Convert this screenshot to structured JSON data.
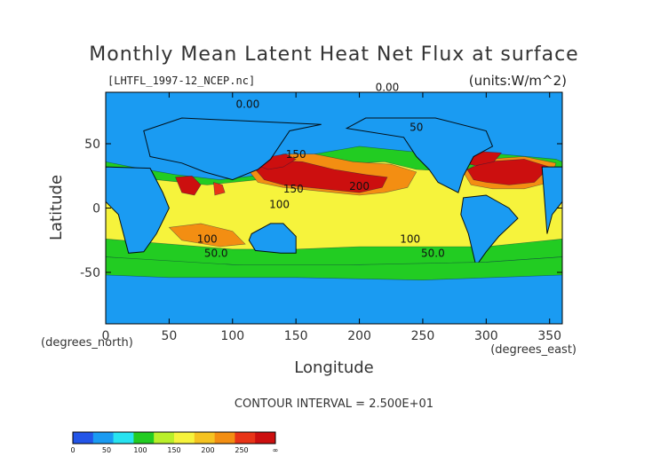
{
  "chart_data": {
    "type": "heatmap",
    "title": "Monthly Mean Latent Heat Net Flux at surface",
    "source_file": "[LHTFL_1997-12_NCEP.nc]",
    "units": "(units:W/m^2)",
    "xlabel": "Longitude",
    "ylabel": "Latitude",
    "x_unit_label": "(degrees_east)",
    "y_unit_label": "(degrees_north)",
    "xlim": [
      0,
      360
    ],
    "ylim": [
      -90,
      90
    ],
    "x_ticks": [
      0,
      50,
      100,
      150,
      200,
      250,
      300,
      350
    ],
    "y_ticks": [
      50,
      0,
      -50
    ],
    "contour_interval_text": "CONTOUR INTERVAL = 2.500E+01",
    "contour_labels": [
      {
        "text": "0.00",
        "lon": 222,
        "lat": 91
      },
      {
        "text": "0.00",
        "lon": 112,
        "lat": 78
      },
      {
        "text": "50",
        "lon": 245,
        "lat": 60
      },
      {
        "text": "150",
        "lon": 150,
        "lat": 39
      },
      {
        "text": "200",
        "lon": 200,
        "lat": 14
      },
      {
        "text": "150",
        "lon": 148,
        "lat": 12
      },
      {
        "text": "100",
        "lon": 137,
        "lat": 0
      },
      {
        "text": "100",
        "lon": 80,
        "lat": -27
      },
      {
        "text": "50.0",
        "lon": 87,
        "lat": -38
      },
      {
        "text": "100",
        "lon": 240,
        "lat": -27
      },
      {
        "text": "50.0",
        "lon": 258,
        "lat": -38
      }
    ],
    "colorbar": {
      "ticks": [
        "0",
        "50",
        "100",
        "150",
        "200",
        "250",
        "∞"
      ],
      "colors": [
        "#2355e8",
        "#1a9bf2",
        "#27e3f0",
        "#22cc22",
        "#b9ef2a",
        "#f6f33c",
        "#f5c321",
        "#f38e12",
        "#e83417",
        "#cc0f0f"
      ]
    },
    "regions": [
      {
        "name": "base",
        "value": 25,
        "poly": [
          [
            0,
            90
          ],
          [
            360,
            90
          ],
          [
            360,
            -90
          ],
          [
            0,
            -90
          ]
        ]
      },
      {
        "name": "tropics",
        "value": 75,
        "poly": [
          [
            0,
            36
          ],
          [
            20,
            32
          ],
          [
            55,
            26
          ],
          [
            90,
            22
          ],
          [
            125,
            26
          ],
          [
            165,
            42
          ],
          [
            200,
            48
          ],
          [
            240,
            44
          ],
          [
            300,
            43
          ],
          [
            355,
            38
          ],
          [
            360,
            36
          ],
          [
            360,
            -38
          ],
          [
            300,
            -42
          ],
          [
            250,
            -44
          ],
          [
            200,
            -44
          ],
          [
            150,
            -46
          ],
          [
            100,
            -44
          ],
          [
            50,
            -42
          ],
          [
            0,
            -38
          ]
        ]
      },
      {
        "name": "greenbelt",
        "value": 125,
        "poly": [
          [
            0,
            24
          ],
          [
            40,
            22
          ],
          [
            80,
            18
          ],
          [
            120,
            22
          ],
          [
            150,
            28
          ],
          [
            180,
            34
          ],
          [
            220,
            36
          ],
          [
            245,
            30
          ],
          [
            280,
            28
          ],
          [
            320,
            30
          ],
          [
            360,
            24
          ],
          [
            360,
            -24
          ],
          [
            300,
            -30
          ],
          [
            250,
            -30
          ],
          [
            200,
            -30
          ],
          [
            150,
            -32
          ],
          [
            100,
            -32
          ],
          [
            50,
            -28
          ],
          [
            0,
            -24
          ]
        ]
      },
      {
        "name": "npac-yellow",
        "value": 175,
        "poly": [
          [
            112,
            30
          ],
          [
            140,
            42
          ],
          [
            165,
            42
          ],
          [
            195,
            36
          ],
          [
            225,
            34
          ],
          [
            245,
            28
          ],
          [
            238,
            16
          ],
          [
            220,
            12
          ],
          [
            200,
            10
          ],
          [
            180,
            12
          ],
          [
            160,
            14
          ],
          [
            140,
            16
          ],
          [
            120,
            20
          ]
        ]
      },
      {
        "name": "npac-orange",
        "value": 225,
        "poly": [
          [
            118,
            30
          ],
          [
            135,
            37
          ],
          [
            155,
            36
          ],
          [
            180,
            30
          ],
          [
            205,
            26
          ],
          [
            222,
            24
          ],
          [
            218,
            16
          ],
          [
            200,
            12
          ],
          [
            180,
            14
          ],
          [
            160,
            16
          ],
          [
            140,
            18
          ],
          [
            125,
            22
          ]
        ]
      },
      {
        "name": "kuroshio",
        "value": 275,
        "poly": [
          [
            120,
            33
          ],
          [
            130,
            40
          ],
          [
            142,
            42
          ],
          [
            150,
            38
          ],
          [
            140,
            32
          ],
          [
            128,
            30
          ]
        ]
      },
      {
        "name": "natl-yellow",
        "value": 175,
        "poly": [
          [
            282,
            28
          ],
          [
            300,
            38
          ],
          [
            330,
            40
          ],
          [
            355,
            35
          ],
          [
            350,
            20
          ],
          [
            330,
            15
          ],
          [
            305,
            15
          ],
          [
            288,
            18
          ]
        ]
      },
      {
        "name": "natl-orange",
        "value": 225,
        "poly": [
          [
            285,
            30
          ],
          [
            300,
            36
          ],
          [
            330,
            38
          ],
          [
            350,
            32
          ],
          [
            338,
            20
          ],
          [
            318,
            18
          ],
          [
            300,
            20
          ],
          [
            290,
            22
          ]
        ]
      },
      {
        "name": "gulfstream",
        "value": 275,
        "poly": [
          [
            282,
            35
          ],
          [
            295,
            44
          ],
          [
            312,
            43
          ],
          [
            306,
            36
          ],
          [
            292,
            33
          ]
        ]
      },
      {
        "name": "arabian-sea",
        "value": 250,
        "poly": [
          [
            55,
            24
          ],
          [
            68,
            25
          ],
          [
            75,
            18
          ],
          [
            70,
            10
          ],
          [
            60,
            12
          ]
        ]
      },
      {
        "name": "bay-of-bengal",
        "value": 200,
        "poly": [
          [
            85,
            20
          ],
          [
            92,
            18
          ],
          [
            94,
            12
          ],
          [
            86,
            10
          ]
        ]
      },
      {
        "name": "south-indian",
        "value": 175,
        "poly": [
          [
            50,
            -15
          ],
          [
            75,
            -12
          ],
          [
            100,
            -18
          ],
          [
            110,
            -28
          ],
          [
            90,
            -30
          ],
          [
            60,
            -25
          ]
        ]
      },
      {
        "name": "australia-land",
        "value": 25,
        "poly": [
          [
            115,
            -20
          ],
          [
            130,
            -12
          ],
          [
            140,
            -12
          ],
          [
            150,
            -22
          ],
          [
            150,
            -35
          ],
          [
            138,
            -35
          ],
          [
            118,
            -33
          ],
          [
            113,
            -25
          ]
        ]
      },
      {
        "name": "sam-land",
        "value": 25,
        "poly": [
          [
            282,
            8
          ],
          [
            300,
            10
          ],
          [
            318,
            0
          ],
          [
            325,
            -8
          ],
          [
            310,
            -22
          ],
          [
            300,
            -34
          ],
          [
            292,
            -45
          ],
          [
            286,
            -20
          ],
          [
            280,
            -5
          ]
        ]
      },
      {
        "name": "africa-land",
        "value": 25,
        "poly": [
          [
            344,
            32
          ],
          [
            360,
            32
          ],
          [
            360,
            5
          ],
          [
            352,
            -5
          ],
          [
            348,
            -20
          ]
        ]
      },
      {
        "name": "africa-land-2",
        "value": 25,
        "poly": [
          [
            0,
            32
          ],
          [
            35,
            31
          ],
          [
            45,
            12
          ],
          [
            50,
            0
          ],
          [
            40,
            -20
          ],
          [
            30,
            -34
          ],
          [
            18,
            -35
          ],
          [
            10,
            -5
          ],
          [
            0,
            5
          ]
        ]
      },
      {
        "name": "asia-land",
        "value": 25,
        "poly": [
          [
            35,
            40
          ],
          [
            60,
            35
          ],
          [
            78,
            28
          ],
          [
            100,
            22
          ],
          [
            120,
            30
          ],
          [
            130,
            38
          ],
          [
            145,
            60
          ],
          [
            170,
            65
          ],
          [
            60,
            70
          ],
          [
            30,
            60
          ]
        ]
      },
      {
        "name": "namerica-land",
        "value": 25,
        "poly": [
          [
            190,
            62
          ],
          [
            235,
            55
          ],
          [
            245,
            40
          ],
          [
            255,
            30
          ],
          [
            262,
            20
          ],
          [
            278,
            12
          ],
          [
            282,
            25
          ],
          [
            290,
            40
          ],
          [
            305,
            48
          ],
          [
            300,
            60
          ],
          [
            260,
            70
          ],
          [
            205,
            70
          ]
        ]
      },
      {
        "name": "southern-cyan",
        "value": 75,
        "poly": [
          [
            0,
            -38
          ],
          [
            100,
            -44
          ],
          [
            200,
            -44
          ],
          [
            300,
            -42
          ],
          [
            360,
            -38
          ],
          [
            360,
            -52
          ],
          [
            250,
            -56
          ],
          [
            150,
            -54
          ],
          [
            50,
            -54
          ],
          [
            0,
            -52
          ]
        ]
      }
    ]
  },
  "colors": {
    "frame": "#000000",
    "land_stroke": "#000000"
  }
}
